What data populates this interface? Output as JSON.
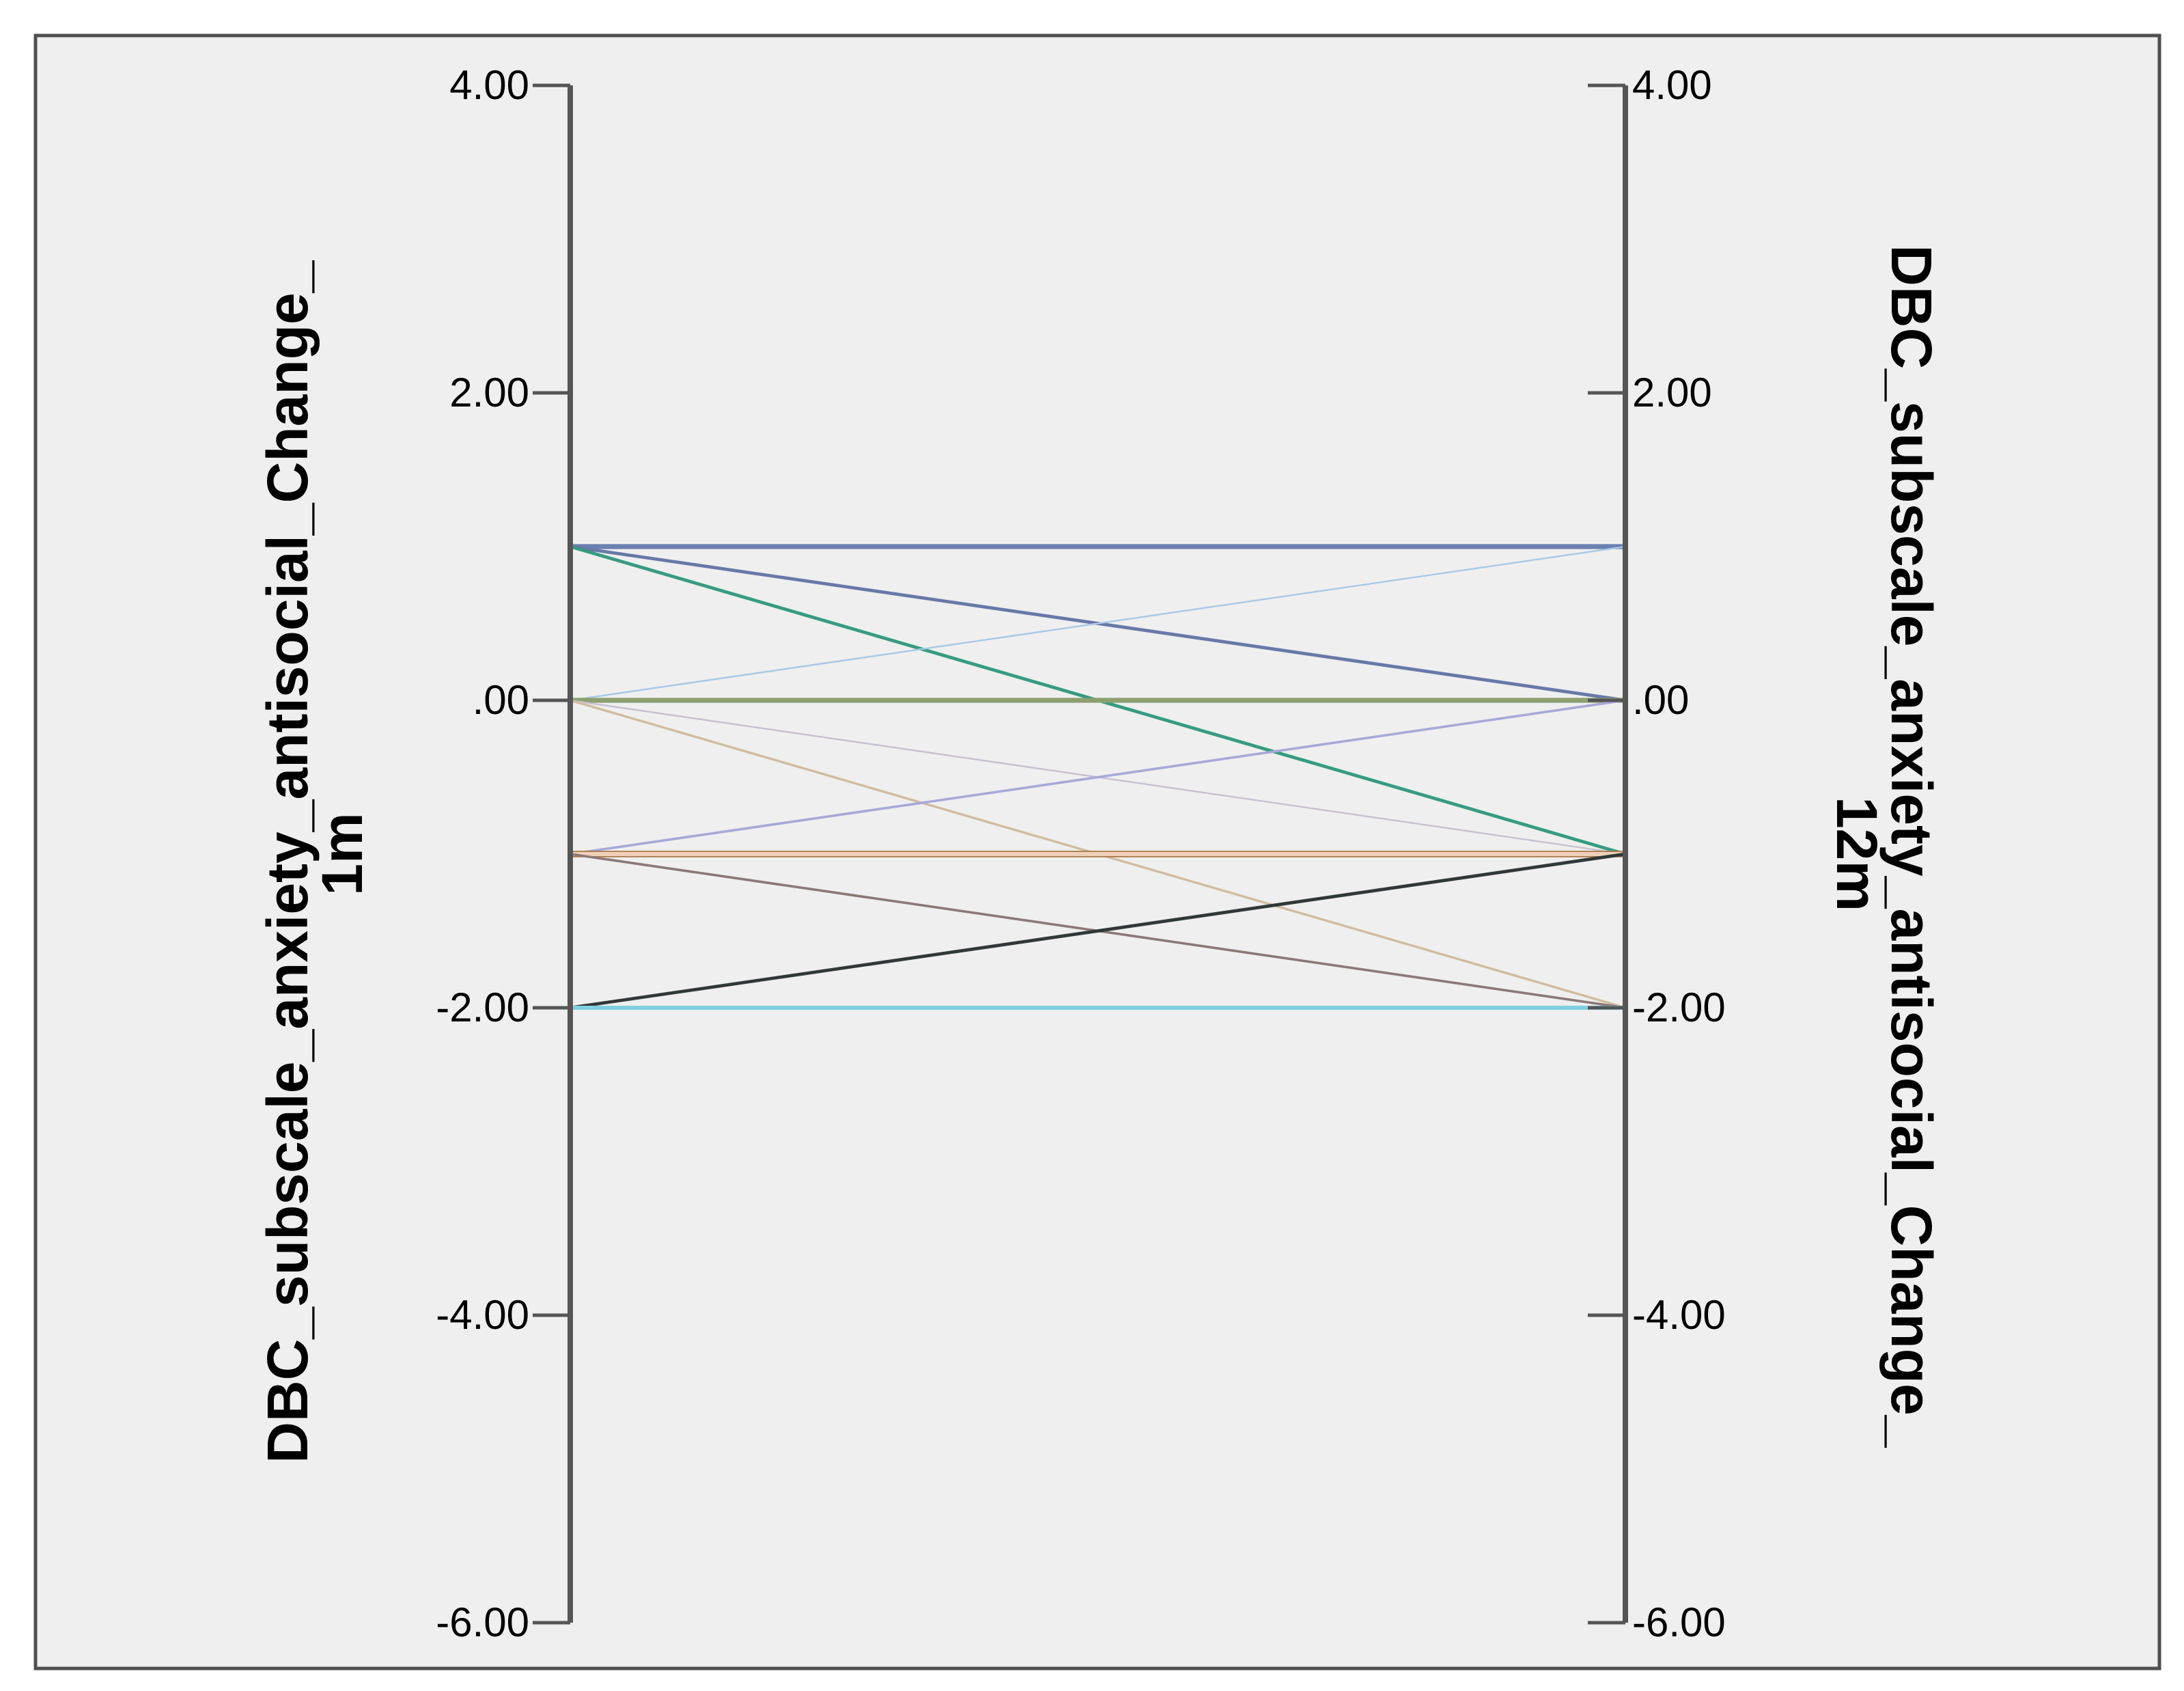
{
  "chart_data": {
    "type": "parallel_coordinates",
    "axes": [
      {
        "label_line1": "DBC_subscale_anxiety_antisocial_Change_",
        "label_line2": "1m",
        "ylim": [
          -6,
          4
        ],
        "ticks": [
          {
            "value": 4,
            "label": "4.00"
          },
          {
            "value": 2,
            "label": "2.00"
          },
          {
            "value": 0,
            "label": ".00"
          },
          {
            "value": -2,
            "label": "-2.00"
          },
          {
            "value": -4,
            "label": "-4.00"
          },
          {
            "value": -6,
            "label": "-6.00"
          }
        ]
      },
      {
        "label_line1": "DBC_subscale_anxiety_antisocial_Change_",
        "label_line2": "12m",
        "ylim": [
          -6,
          4
        ],
        "ticks": [
          {
            "value": 4,
            "label": "4.00"
          },
          {
            "value": 2,
            "label": "2.00"
          },
          {
            "value": 0,
            "label": ".00"
          },
          {
            "value": -2,
            "label": "-2.00"
          },
          {
            "value": -4,
            "label": "-4.00"
          },
          {
            "value": -6,
            "label": "-6.00"
          }
        ]
      }
    ],
    "lines": [
      {
        "from": 1,
        "to": 1,
        "color": "#6a80b0",
        "weight": 3
      },
      {
        "from": 1,
        "to": 0,
        "color": "#6878a8",
        "weight": 2
      },
      {
        "from": 1,
        "to": -1,
        "color": "#2aa860",
        "weight": 2
      },
      {
        "from": 1,
        "to": -1,
        "color": "#3a9888",
        "weight": 1.5
      },
      {
        "from": 0,
        "to": 1,
        "color": "#a8c8e8",
        "weight": 1
      },
      {
        "from": 0,
        "to": 0,
        "color": "#8ca070",
        "weight": 3
      },
      {
        "from": 0,
        "to": -1,
        "color": "#c8c0d0",
        "weight": 1
      },
      {
        "from": 0,
        "to": -2,
        "color": "#d8cc98",
        "weight": 1.5
      },
      {
        "from": 0,
        "to": -2,
        "color": "#d0b8a8",
        "weight": 1
      },
      {
        "from": -1,
        "to": 0,
        "color": "#a8a8d8",
        "weight": 1.5
      },
      {
        "from": -1,
        "to": -1,
        "color": "#a87848",
        "weight": 4
      },
      {
        "from": -1,
        "to": -1,
        "color": "#f0d0b8",
        "weight": 2.5
      },
      {
        "from": -1,
        "to": -2,
        "color": "#8c7878",
        "weight": 1.5
      },
      {
        "from": -2,
        "to": -1,
        "color": "#303838",
        "weight": 2
      },
      {
        "from": -2,
        "to": -2,
        "color": "#80d0e0",
        "weight": 2.5
      }
    ],
    "grid": false,
    "legend": "none"
  }
}
